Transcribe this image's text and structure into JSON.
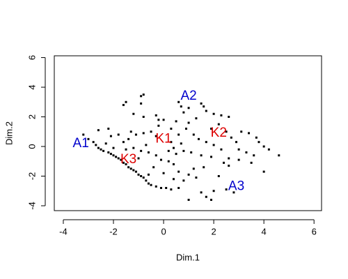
{
  "chart_data": {
    "type": "scatter",
    "xlabel": "Dim.1",
    "ylabel": "Dim.2",
    "xlim": [
      -4.36,
      6.3
    ],
    "ylim": [
      -4.33,
      6.12
    ],
    "xticks": [
      -4,
      -2,
      0,
      2,
      4,
      6
    ],
    "yticks": [
      -4,
      -2,
      0,
      2,
      4,
      6
    ],
    "color": "#000000",
    "x": [
      -3.2,
      -3.0,
      -2.8,
      -2.7,
      -2.6,
      -2.5,
      -2.4,
      -2.3,
      -2.2,
      -2.1,
      -2.0,
      -1.9,
      -1.8,
      -1.7,
      -1.6,
      -1.5,
      -1.4,
      -1.3,
      -1.2,
      -1.1,
      -1.0,
      -0.9,
      -0.8,
      -0.7,
      -0.6,
      -0.5,
      -0.3,
      -0.1,
      0.1,
      0.3,
      0.6,
      1.5,
      1.7,
      1.0,
      1.9,
      2.0,
      -1.6,
      -1.5,
      -1.2,
      -0.9,
      -0.8,
      -0.9,
      -0.8,
      -0.3,
      -0.2,
      0.6,
      0.7,
      0.8,
      0.5,
      1.0,
      1.5,
      1.6,
      1.7,
      2.0,
      2.3,
      2.2,
      1.9,
      2.5,
      2.7,
      3.1,
      3.4,
      3.7,
      3.8,
      4.0,
      4.2,
      4.6,
      4.0,
      3.6,
      3.3,
      3.5,
      3.0,
      2.6,
      2.4,
      2.6,
      2.5,
      2.8,
      2.2,
      1.6,
      1.2,
      1.0,
      0.6,
      0.4,
      0.2,
      -0.1,
      -0.3,
      -0.6,
      -0.9,
      -1.2,
      -1.4,
      -1.6,
      -1.8,
      -2.1,
      -2.2,
      -2.6,
      -1.3,
      -1.1,
      -0.8,
      -0.5,
      -0.3,
      0.0,
      0.3,
      0.6,
      0.9,
      1.2,
      1.4,
      1.7,
      2.0,
      2.3,
      1.1,
      0.8,
      0.5,
      0.2,
      1.5,
      1.9,
      0.7,
      0.3,
      -0.7,
      -1.0,
      -0.4,
      -0.6,
      0.0,
      0.4,
      0.8,
      1.3,
      -1.5,
      -2.0,
      1.3,
      1.0,
      2.6,
      -0.2,
      0.4,
      3.0,
      2.9
    ],
    "y": [
      0.8,
      0.5,
      0.3,
      0.1,
      -0.1,
      -0.2,
      -0.3,
      0.2,
      -0.4,
      -0.5,
      -0.6,
      -0.7,
      -0.8,
      -0.9,
      -1.1,
      -1.2,
      -1.4,
      -1.5,
      -1.6,
      -1.7,
      -1.9,
      -2.0,
      -2.1,
      -2.3,
      -2.5,
      -2.6,
      -2.7,
      -2.8,
      -2.8,
      -2.9,
      -2.8,
      -3.1,
      -3.4,
      -3.6,
      -3.6,
      -3.0,
      2.8,
      3.0,
      2.2,
      3.4,
      3.5,
      2.9,
      2.0,
      2.1,
      1.8,
      3.0,
      2.7,
      2.3,
      1.7,
      2.6,
      2.9,
      2.7,
      2.4,
      2.2,
      2.1,
      1.5,
      1.2,
      1.0,
      0.6,
      1.0,
      0.9,
      0.6,
      0.3,
      0.0,
      -0.2,
      -0.6,
      -1.7,
      -0.6,
      -0.4,
      -1.1,
      -0.9,
      -0.8,
      -1.1,
      -1.3,
      -2.9,
      -3.1,
      -2.0,
      -1.4,
      -1.5,
      -1.9,
      -1.7,
      -1.2,
      -1.0,
      -0.9,
      -0.6,
      -0.4,
      -0.3,
      -0.1,
      0.5,
      0.3,
      0.8,
      0.7,
      1.2,
      1.1,
      1.0,
      0.8,
      0.9,
      1.0,
      0.7,
      1.8,
      1.2,
      0.8,
      1.2,
      0.8,
      0.5,
      0.3,
      0.1,
      -0.2,
      -0.4,
      -0.3,
      -0.5,
      -0.3,
      -0.6,
      -0.7,
      0.2,
      0.3,
      0.1,
      -0.8,
      -1.4,
      -1.9,
      -1.8,
      -2.2,
      -2.3,
      -2.1,
      -0.2,
      -0.1,
      1.9,
      1.6,
      2.0,
      1.4,
      -0.1,
      -0.2,
      0.3
    ],
    "annotations": [
      {
        "text": "A1",
        "x": -3.3,
        "y": 0.2,
        "color": "#0000cc"
      },
      {
        "text": "A2",
        "x": 1.0,
        "y": 3.4,
        "color": "#0000cc"
      },
      {
        "text": "A3",
        "x": 2.9,
        "y": -2.7,
        "color": "#0000cc"
      },
      {
        "text": "K1",
        "x": 0.0,
        "y": 0.5,
        "color": "#dd0000"
      },
      {
        "text": "K2",
        "x": 2.2,
        "y": 0.9,
        "color": "#dd0000"
      },
      {
        "text": "K3",
        "x": -1.4,
        "y": -0.9,
        "color": "#dd0000"
      }
    ]
  }
}
